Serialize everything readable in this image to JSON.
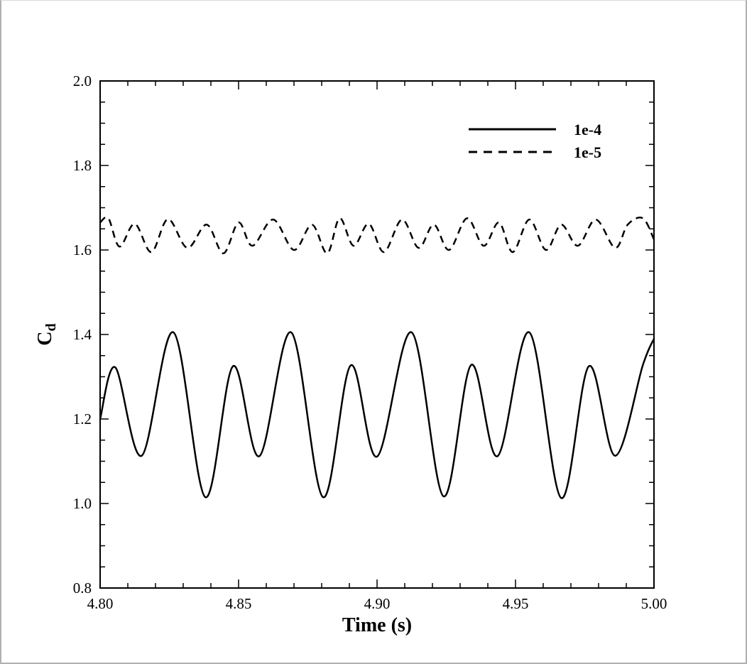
{
  "chart_data": {
    "type": "line",
    "title": "",
    "xlabel": "Time (s)",
    "ylabel_main": "C",
    "ylabel_sub": "d",
    "xlim": [
      4.8,
      5.0
    ],
    "ylim": [
      0.8,
      2.0
    ],
    "xticks": [
      4.8,
      4.85,
      4.9,
      4.95,
      5.0
    ],
    "xtick_labels": [
      "4.80",
      "4.85",
      "4.90",
      "4.95",
      "5.00"
    ],
    "yticks": [
      0.8,
      1.0,
      1.2,
      1.4,
      1.6,
      1.8,
      2.0
    ],
    "ytick_labels": [
      "0.8",
      "1.0",
      "1.2",
      "1.4",
      "1.6",
      "1.8",
      "2.0"
    ],
    "grid": false,
    "legend_position": "top-right",
    "series": [
      {
        "name": "1e-4",
        "style": "solid",
        "color": "#000000",
        "x": [
          4.8,
          4.8055,
          4.815,
          4.8265,
          4.838,
          4.848,
          4.8575,
          4.869,
          4.8805,
          4.8905,
          4.9,
          4.9125,
          4.924,
          4.934,
          4.9435,
          4.955,
          4.9665,
          4.9765,
          4.986,
          4.996,
          5.0
        ],
        "y": [
          1.2,
          1.322,
          1.113,
          1.405,
          1.015,
          1.325,
          1.112,
          1.405,
          1.015,
          1.327,
          1.111,
          1.405,
          1.017,
          1.328,
          1.112,
          1.405,
          1.013,
          1.325,
          1.113,
          1.328,
          1.39
        ]
      },
      {
        "name": "1e-5",
        "style": "dashed",
        "color": "#000000",
        "x": [
          4.8,
          4.803,
          4.807,
          4.8125,
          4.8185,
          4.8245,
          4.8315,
          4.8385,
          4.8445,
          4.85,
          4.855,
          4.8625,
          4.87,
          4.8765,
          4.882,
          4.8865,
          4.8915,
          4.897,
          4.9025,
          4.909,
          4.915,
          4.9205,
          4.926,
          4.9325,
          4.9385,
          4.944,
          4.949,
          4.955,
          4.961,
          4.9665,
          4.9725,
          4.979,
          4.986,
          4.9905,
          4.996,
          5.0
        ],
        "y": [
          1.665,
          1.675,
          1.608,
          1.662,
          1.595,
          1.673,
          1.605,
          1.66,
          1.592,
          1.665,
          1.61,
          1.672,
          1.6,
          1.66,
          1.592,
          1.675,
          1.61,
          1.662,
          1.595,
          1.672,
          1.605,
          1.66,
          1.6,
          1.675,
          1.61,
          1.665,
          1.595,
          1.672,
          1.6,
          1.66,
          1.61,
          1.672,
          1.605,
          1.66,
          1.675,
          1.625
        ]
      }
    ]
  }
}
